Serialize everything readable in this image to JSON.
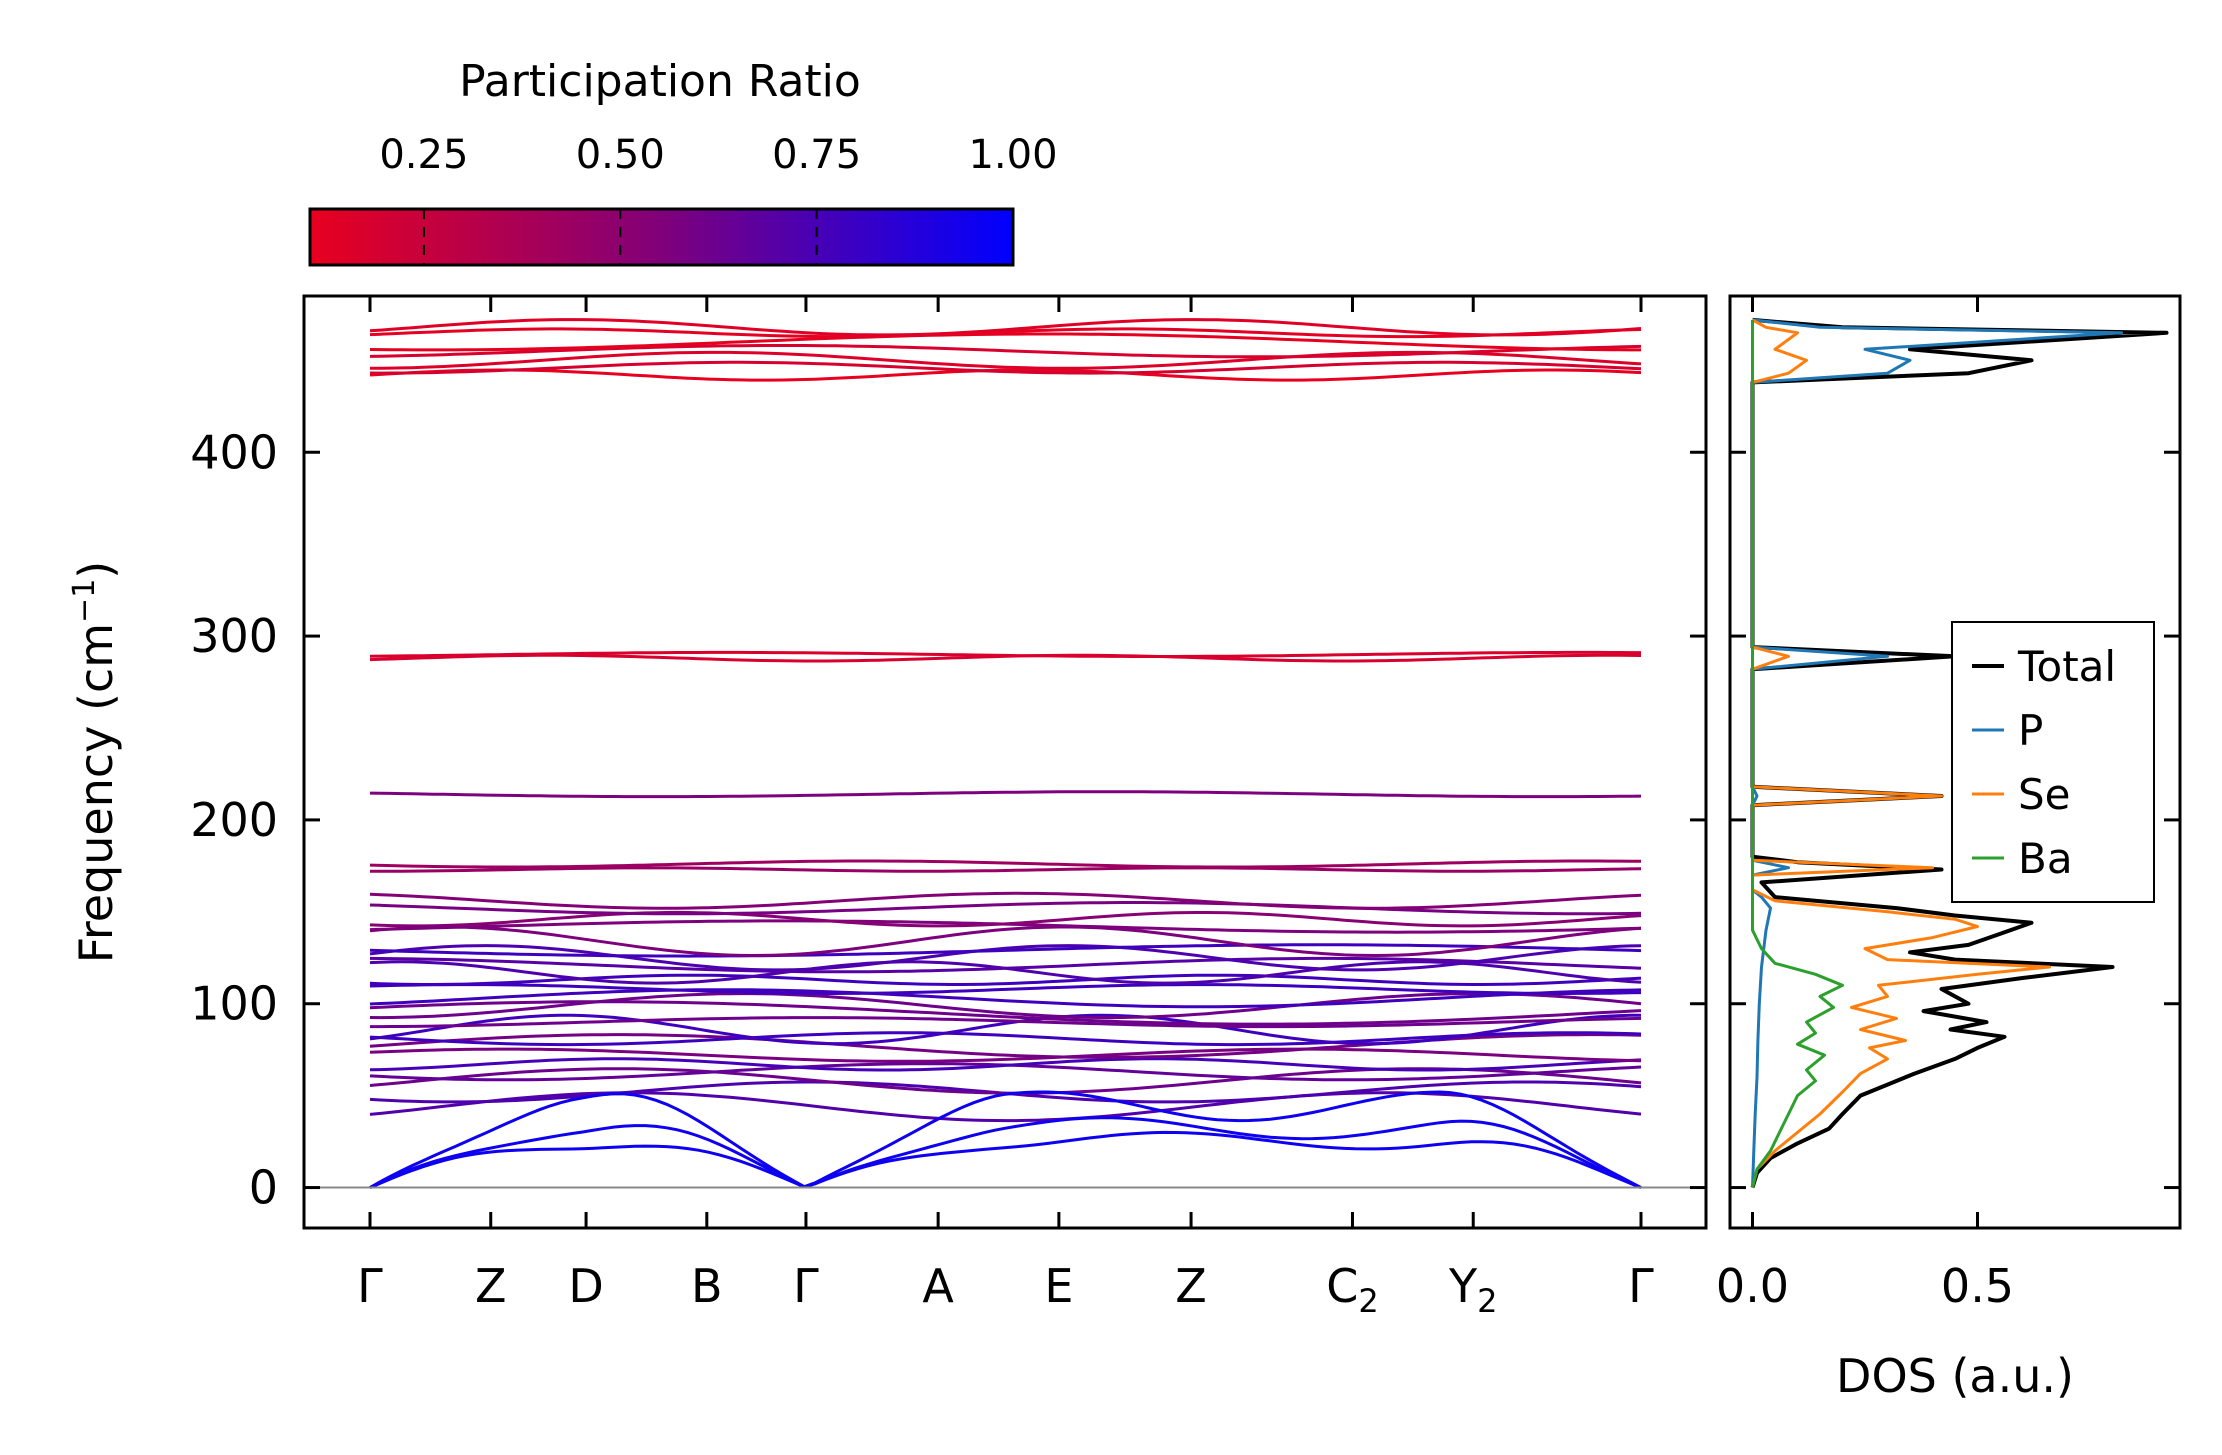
{
  "chart_data": [
    {
      "type": "line",
      "panel": "phonon-band-structure",
      "ylabel": "Frequency (cm",
      "ylabel_sup": "−1",
      "ylabel_close": ")",
      "ylim": [
        -22,
        485
      ],
      "yticks": [
        0,
        100,
        200,
        300,
        400
      ],
      "high_symmetry_points": [
        {
          "label": "Γ",
          "sub": "",
          "k": 0.0
        },
        {
          "label": "Z",
          "sub": "",
          "k": 0.095
        },
        {
          "label": "D",
          "sub": "",
          "k": 0.17
        },
        {
          "label": "B",
          "sub": "",
          "k": 0.265
        },
        {
          "label": "Γ",
          "sub": "",
          "k": 0.343
        },
        {
          "label": "A",
          "sub": "",
          "k": 0.447
        },
        {
          "label": "E",
          "sub": "",
          "k": 0.542
        },
        {
          "label": "Z",
          "sub": "",
          "k": 0.646
        },
        {
          "label": "C",
          "sub": "2",
          "k": 0.773
        },
        {
          "label": "Y",
          "sub": "2",
          "k": 0.868
        },
        {
          "label": "Γ",
          "sub": "",
          "k": 1.0
        }
      ],
      "band_groups": [
        {
          "name": "high-optical",
          "base": [
            442,
            446,
            450,
            455,
            460,
            465,
            468
          ],
          "amp": 4,
          "participation": 0.12
        },
        {
          "name": "mid-optical",
          "base": [
            288,
            290
          ],
          "amp": 2,
          "participation": 0.22
        },
        {
          "name": "optical-214",
          "base": [
            214
          ],
          "amp": 1,
          "participation": 0.55
        },
        {
          "name": "optical-175",
          "base": [
            173,
            176
          ],
          "amp": 2,
          "participation": 0.5
        },
        {
          "name": "optical-140-160",
          "base": [
            142,
            146,
            152,
            156
          ],
          "amp": 4,
          "participation": 0.6
        },
        {
          "name": "low-optical",
          "base": [
            44,
            52,
            58,
            63,
            67,
            72,
            77,
            81,
            86,
            90,
            95,
            99,
            103,
            108,
            113,
            117,
            121,
            125,
            129,
            134
          ],
          "amp": 6,
          "participation": 0.68
        },
        {
          "name": "acoustic",
          "participation": 0.95,
          "max": [
            30,
            38,
            52
          ]
        }
      ],
      "colorbar": {
        "title": "Participation Ratio",
        "ticks": [
          "0.25",
          "0.50",
          "0.75",
          "1.00"
        ],
        "tick_values": [
          0.25,
          0.5,
          0.75,
          1.0
        ],
        "range": [
          0.105,
          1.0
        ],
        "color_low": "#e8001f",
        "color_mid": "#80007a",
        "color_high": "#0000ff"
      }
    },
    {
      "type": "line",
      "panel": "density-of-states",
      "xlabel": "DOS (a.u.)",
      "xlim": [
        -0.05,
        0.95
      ],
      "xticks": [
        "0.0",
        "0.5"
      ],
      "ylim": [
        -22,
        485
      ],
      "legend_position": "center-right",
      "series": [
        {
          "name": "Total",
          "color": "#000000",
          "points": [
            [
              0,
              0
            ],
            [
              0.01,
              8
            ],
            [
              0.04,
              16
            ],
            [
              0.1,
              24
            ],
            [
              0.17,
              32
            ],
            [
              0.2,
              40
            ],
            [
              0.24,
              50
            ],
            [
              0.3,
              56
            ],
            [
              0.36,
              62
            ],
            [
              0.45,
              70
            ],
            [
              0.5,
              76
            ],
            [
              0.56,
              82
            ],
            [
              0.44,
              86
            ],
            [
              0.52,
              90
            ],
            [
              0.38,
              96
            ],
            [
              0.48,
              100
            ],
            [
              0.42,
              108
            ],
            [
              0.6,
              114
            ],
            [
              0.8,
              120
            ],
            [
              0.45,
              124
            ],
            [
              0.35,
              128
            ],
            [
              0.48,
              132
            ],
            [
              0.55,
              138
            ],
            [
              0.62,
              144
            ],
            [
              0.45,
              148
            ],
            [
              0.32,
              152
            ],
            [
              0.05,
              158
            ],
            [
              0.02,
              166
            ],
            [
              0.42,
              173
            ],
            [
              0.1,
              177
            ],
            [
              0,
              180
            ],
            [
              0,
              208
            ],
            [
              0.42,
              213
            ],
            [
              0,
              218
            ],
            [
              0,
              282
            ],
            [
              0.45,
              289
            ],
            [
              0,
              294
            ],
            [
              0,
              438
            ],
            [
              0.48,
              443
            ],
            [
              0.62,
              450
            ],
            [
              0.35,
              456
            ],
            [
              0.92,
              465
            ],
            [
              0.2,
              468
            ],
            [
              0,
              472
            ]
          ]
        },
        {
          "name": "P",
          "color": "#1f77b4",
          "points": [
            [
              0,
              0
            ],
            [
              0.003,
              20
            ],
            [
              0.006,
              40
            ],
            [
              0.01,
              60
            ],
            [
              0.012,
              80
            ],
            [
              0.015,
              100
            ],
            [
              0.02,
              120
            ],
            [
              0.03,
              140
            ],
            [
              0.04,
              152
            ],
            [
              0.02,
              158
            ],
            [
              0,
              162
            ],
            [
              0,
              170
            ],
            [
              0.08,
              174
            ],
            [
              0,
              178
            ],
            [
              0,
              208
            ],
            [
              0.01,
              213
            ],
            [
              0,
              218
            ],
            [
              0,
              282
            ],
            [
              0.3,
              289
            ],
            [
              0,
              294
            ],
            [
              0,
              438
            ],
            [
              0.3,
              443
            ],
            [
              0.35,
              450
            ],
            [
              0.25,
              456
            ],
            [
              0.82,
              465
            ],
            [
              0.15,
              468
            ],
            [
              0,
              472
            ]
          ]
        },
        {
          "name": "Se",
          "color": "#ff7f0e",
          "points": [
            [
              0,
              0
            ],
            [
              0.01,
              10
            ],
            [
              0.05,
              20
            ],
            [
              0.1,
              30
            ],
            [
              0.15,
              40
            ],
            [
              0.2,
              52
            ],
            [
              0.24,
              62
            ],
            [
              0.3,
              70
            ],
            [
              0.26,
              76
            ],
            [
              0.34,
              80
            ],
            [
              0.24,
              86
            ],
            [
              0.32,
              92
            ],
            [
              0.22,
              98
            ],
            [
              0.3,
              104
            ],
            [
              0.28,
              110
            ],
            [
              0.5,
              116
            ],
            [
              0.66,
              120
            ],
            [
              0.3,
              124
            ],
            [
              0.25,
              130
            ],
            [
              0.4,
              136
            ],
            [
              0.5,
              142
            ],
            [
              0.45,
              146
            ],
            [
              0.3,
              150
            ],
            [
              0.05,
              156
            ],
            [
              0,
              162
            ],
            [
              0,
              170
            ],
            [
              0.4,
              174
            ],
            [
              0,
              178
            ],
            [
              0,
              208
            ],
            [
              0.42,
              213
            ],
            [
              0,
              218
            ],
            [
              0,
              282
            ],
            [
              0.08,
              289
            ],
            [
              0,
              294
            ],
            [
              0,
              438
            ],
            [
              0.08,
              443
            ],
            [
              0.12,
              450
            ],
            [
              0.05,
              456
            ],
            [
              0.1,
              465
            ],
            [
              0.03,
              468
            ],
            [
              0,
              472
            ]
          ]
        },
        {
          "name": "Ba",
          "color": "#2ca02c",
          "points": [
            [
              0,
              0
            ],
            [
              0.01,
              10
            ],
            [
              0.04,
              20
            ],
            [
              0.06,
              30
            ],
            [
              0.08,
              40
            ],
            [
              0.1,
              50
            ],
            [
              0.14,
              58
            ],
            [
              0.12,
              64
            ],
            [
              0.16,
              72
            ],
            [
              0.1,
              78
            ],
            [
              0.14,
              84
            ],
            [
              0.12,
              90
            ],
            [
              0.18,
              98
            ],
            [
              0.15,
              104
            ],
            [
              0.2,
              110
            ],
            [
              0.14,
              116
            ],
            [
              0.05,
              122
            ],
            [
              0.02,
              130
            ],
            [
              0,
              140
            ],
            [
              0,
              472
            ]
          ]
        }
      ],
      "legend": [
        "Total",
        "P",
        "Se",
        "Ba"
      ]
    }
  ]
}
